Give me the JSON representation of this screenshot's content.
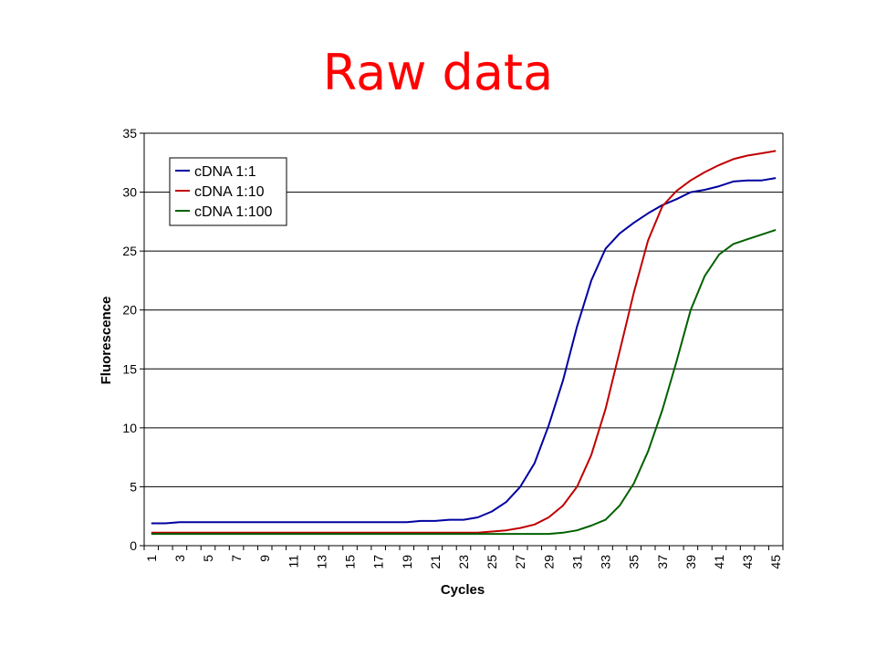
{
  "slide": {
    "title": "Raw data"
  },
  "chart_data": {
    "type": "line",
    "xlabel": "Cycles",
    "ylabel": "Fluorescence",
    "ylim": [
      0,
      35
    ],
    "yticks": [
      0,
      5,
      10,
      15,
      20,
      25,
      30,
      35
    ],
    "x": [
      1,
      2,
      3,
      4,
      5,
      6,
      7,
      8,
      9,
      10,
      11,
      12,
      13,
      14,
      15,
      16,
      17,
      18,
      19,
      20,
      21,
      22,
      23,
      24,
      25,
      26,
      27,
      28,
      29,
      30,
      31,
      32,
      33,
      34,
      35,
      36,
      37,
      38,
      39,
      40,
      41,
      42,
      43,
      44,
      45
    ],
    "xtick_labels": [
      "1",
      "3",
      "5",
      "7",
      "9",
      "11",
      "13",
      "15",
      "17",
      "19",
      "21",
      "23",
      "25",
      "27",
      "29",
      "31",
      "33",
      "35",
      "37",
      "39",
      "41",
      "43",
      "45"
    ],
    "grid": "horizontal",
    "legend_position": "top-left",
    "series": [
      {
        "name": "cDNA 1:1",
        "color": "#0000a0",
        "values": [
          1.9,
          1.9,
          2.0,
          2.0,
          2.0,
          2.0,
          2.0,
          2.0,
          2.0,
          2.0,
          2.0,
          2.0,
          2.0,
          2.0,
          2.0,
          2.0,
          2.0,
          2.0,
          2.0,
          2.1,
          2.1,
          2.2,
          2.2,
          2.4,
          2.9,
          3.7,
          5.0,
          7.0,
          10.2,
          14.0,
          18.6,
          22.5,
          25.2,
          26.5,
          27.4,
          28.2,
          28.9,
          29.4,
          30.0,
          30.2,
          30.5,
          30.9,
          31.0,
          31.0,
          31.2
        ]
      },
      {
        "name": "cDNA 1:10",
        "color": "#c00000",
        "values": [
          1.1,
          1.1,
          1.1,
          1.1,
          1.1,
          1.1,
          1.1,
          1.1,
          1.1,
          1.1,
          1.1,
          1.1,
          1.1,
          1.1,
          1.1,
          1.1,
          1.1,
          1.1,
          1.1,
          1.1,
          1.1,
          1.1,
          1.1,
          1.1,
          1.2,
          1.3,
          1.5,
          1.8,
          2.4,
          3.4,
          5.0,
          7.7,
          11.6,
          16.5,
          21.5,
          25.9,
          28.8,
          30.1,
          31.0,
          31.7,
          32.3,
          32.8,
          33.1,
          33.3,
          33.5
        ]
      },
      {
        "name": "cDNA 1:100",
        "color": "#006000",
        "values": [
          1.0,
          1.0,
          1.0,
          1.0,
          1.0,
          1.0,
          1.0,
          1.0,
          1.0,
          1.0,
          1.0,
          1.0,
          1.0,
          1.0,
          1.0,
          1.0,
          1.0,
          1.0,
          1.0,
          1.0,
          1.0,
          1.0,
          1.0,
          1.0,
          1.0,
          1.0,
          1.0,
          1.0,
          1.0,
          1.1,
          1.3,
          1.7,
          2.2,
          3.4,
          5.3,
          8.0,
          11.5,
          15.6,
          20.0,
          22.9,
          24.7,
          25.6,
          26.0,
          26.4,
          26.8
        ]
      }
    ]
  }
}
